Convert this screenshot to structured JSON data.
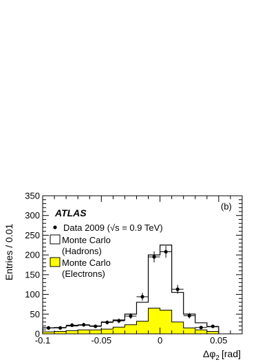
{
  "chart_data": {
    "type": "histogram",
    "experiment_label": "ATLAS",
    "panel_label": "(b)",
    "xlabel": "Δφ",
    "xlabel_subscript": "2",
    "xlabel_unit": "[rad]",
    "ylabel": "Entries / 0.01",
    "xlim": [
      -0.1,
      0.07
    ],
    "ylim": [
      0,
      350
    ],
    "x_ticks": [
      -0.1,
      -0.05,
      0,
      0.05
    ],
    "x_tick_labels": [
      "-0.1",
      "-0.05",
      "0",
      "0.05"
    ],
    "y_ticks": [
      0,
      50,
      100,
      150,
      200,
      250,
      300,
      350
    ],
    "y_tick_labels": [
      "0",
      "50",
      "100",
      "150",
      "200",
      "250",
      "300",
      "350"
    ],
    "bin_edges": [
      -0.1,
      -0.09,
      -0.08,
      -0.07,
      -0.06,
      -0.05,
      -0.04,
      -0.03,
      -0.02,
      -0.01,
      0.0,
      0.01,
      0.02,
      0.03,
      0.04,
      0.05
    ],
    "series": [
      {
        "name": "Monte Carlo (Hadrons)",
        "kind": "histogram-outline",
        "values": [
          15,
          16,
          20,
          22,
          20,
          30,
          35,
          50,
          80,
          200,
          225,
          105,
          50,
          28,
          18
        ]
      },
      {
        "name": "Monte Carlo (Electrons)",
        "kind": "histogram-filled",
        "color": "#ffff00",
        "values": [
          5,
          6,
          8,
          10,
          10,
          12,
          17,
          23,
          32,
          65,
          60,
          30,
          15,
          10,
          6
        ]
      },
      {
        "name": "Data 2009 (√s = 0.9 TeV)",
        "kind": "points",
        "x": [
          -0.095,
          -0.085,
          -0.075,
          -0.065,
          -0.055,
          -0.045,
          -0.035,
          -0.025,
          -0.015,
          -0.005,
          0.005,
          0.015,
          0.025,
          0.035,
          0.045
        ],
        "y": [
          15,
          15,
          22,
          23,
          19,
          29,
          33,
          45,
          94,
          195,
          208,
          113,
          46,
          16,
          19
        ],
        "yerr": [
          4,
          4,
          5,
          5,
          4,
          5,
          6,
          7,
          10,
          14,
          15,
          11,
          7,
          4,
          4
        ]
      }
    ],
    "legend": {
      "data_label": "Data 2009 (",
      "sqrt_label": "s = 0.9 TeV)",
      "hadrons_line1": "Monte Carlo",
      "hadrons_line2": "(Hadrons)",
      "electrons_line1": "Monte Carlo",
      "electrons_line2": "(Electrons)",
      "electron_fill": "#ffff00"
    },
    "grid": false
  }
}
